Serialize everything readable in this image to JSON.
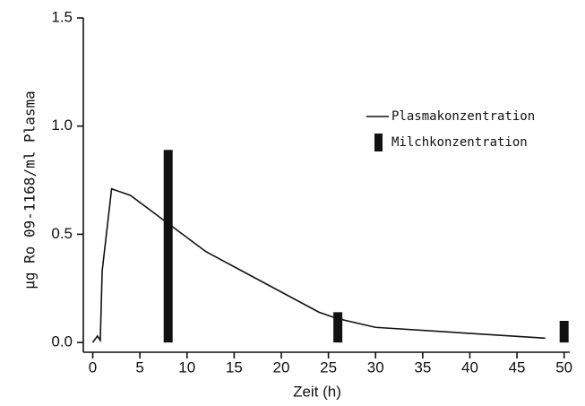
{
  "chart_data": {
    "type": "line",
    "x_label": "Zeit (h)",
    "y_label": "µg Ro 09-1168/ml Plasma",
    "xlim": [
      -1,
      50.6
    ],
    "ylim": [
      -0.045,
      1.5
    ],
    "xticks": [
      0,
      5,
      10,
      15,
      20,
      25,
      30,
      35,
      40,
      45,
      50
    ],
    "yticks": [
      {
        "value": 0,
        "label": "0.0"
      },
      {
        "value": 0.5,
        "label": "0.5"
      },
      {
        "value": 1,
        "label": "1.0"
      },
      {
        "value": 1.5,
        "label": "1.5"
      }
    ],
    "series": [
      {
        "name": "Plasmakonzentration",
        "type": "line",
        "color": "#111111",
        "x": [
          0,
          0.5,
          0.8,
          1,
          2,
          4,
          8,
          12,
          24,
          26,
          30,
          48
        ],
        "values": [
          0,
          0.03,
          0.01,
          0.33,
          0.71,
          0.68,
          0.55,
          0.42,
          0.14,
          0.11,
          0.07,
          0.02
        ]
      },
      {
        "name": "Milchkonzentration",
        "type": "bar",
        "color": "#111111",
        "x": [
          8,
          26,
          50
        ],
        "values": [
          0.89,
          0.14,
          0.1
        ]
      }
    ]
  }
}
